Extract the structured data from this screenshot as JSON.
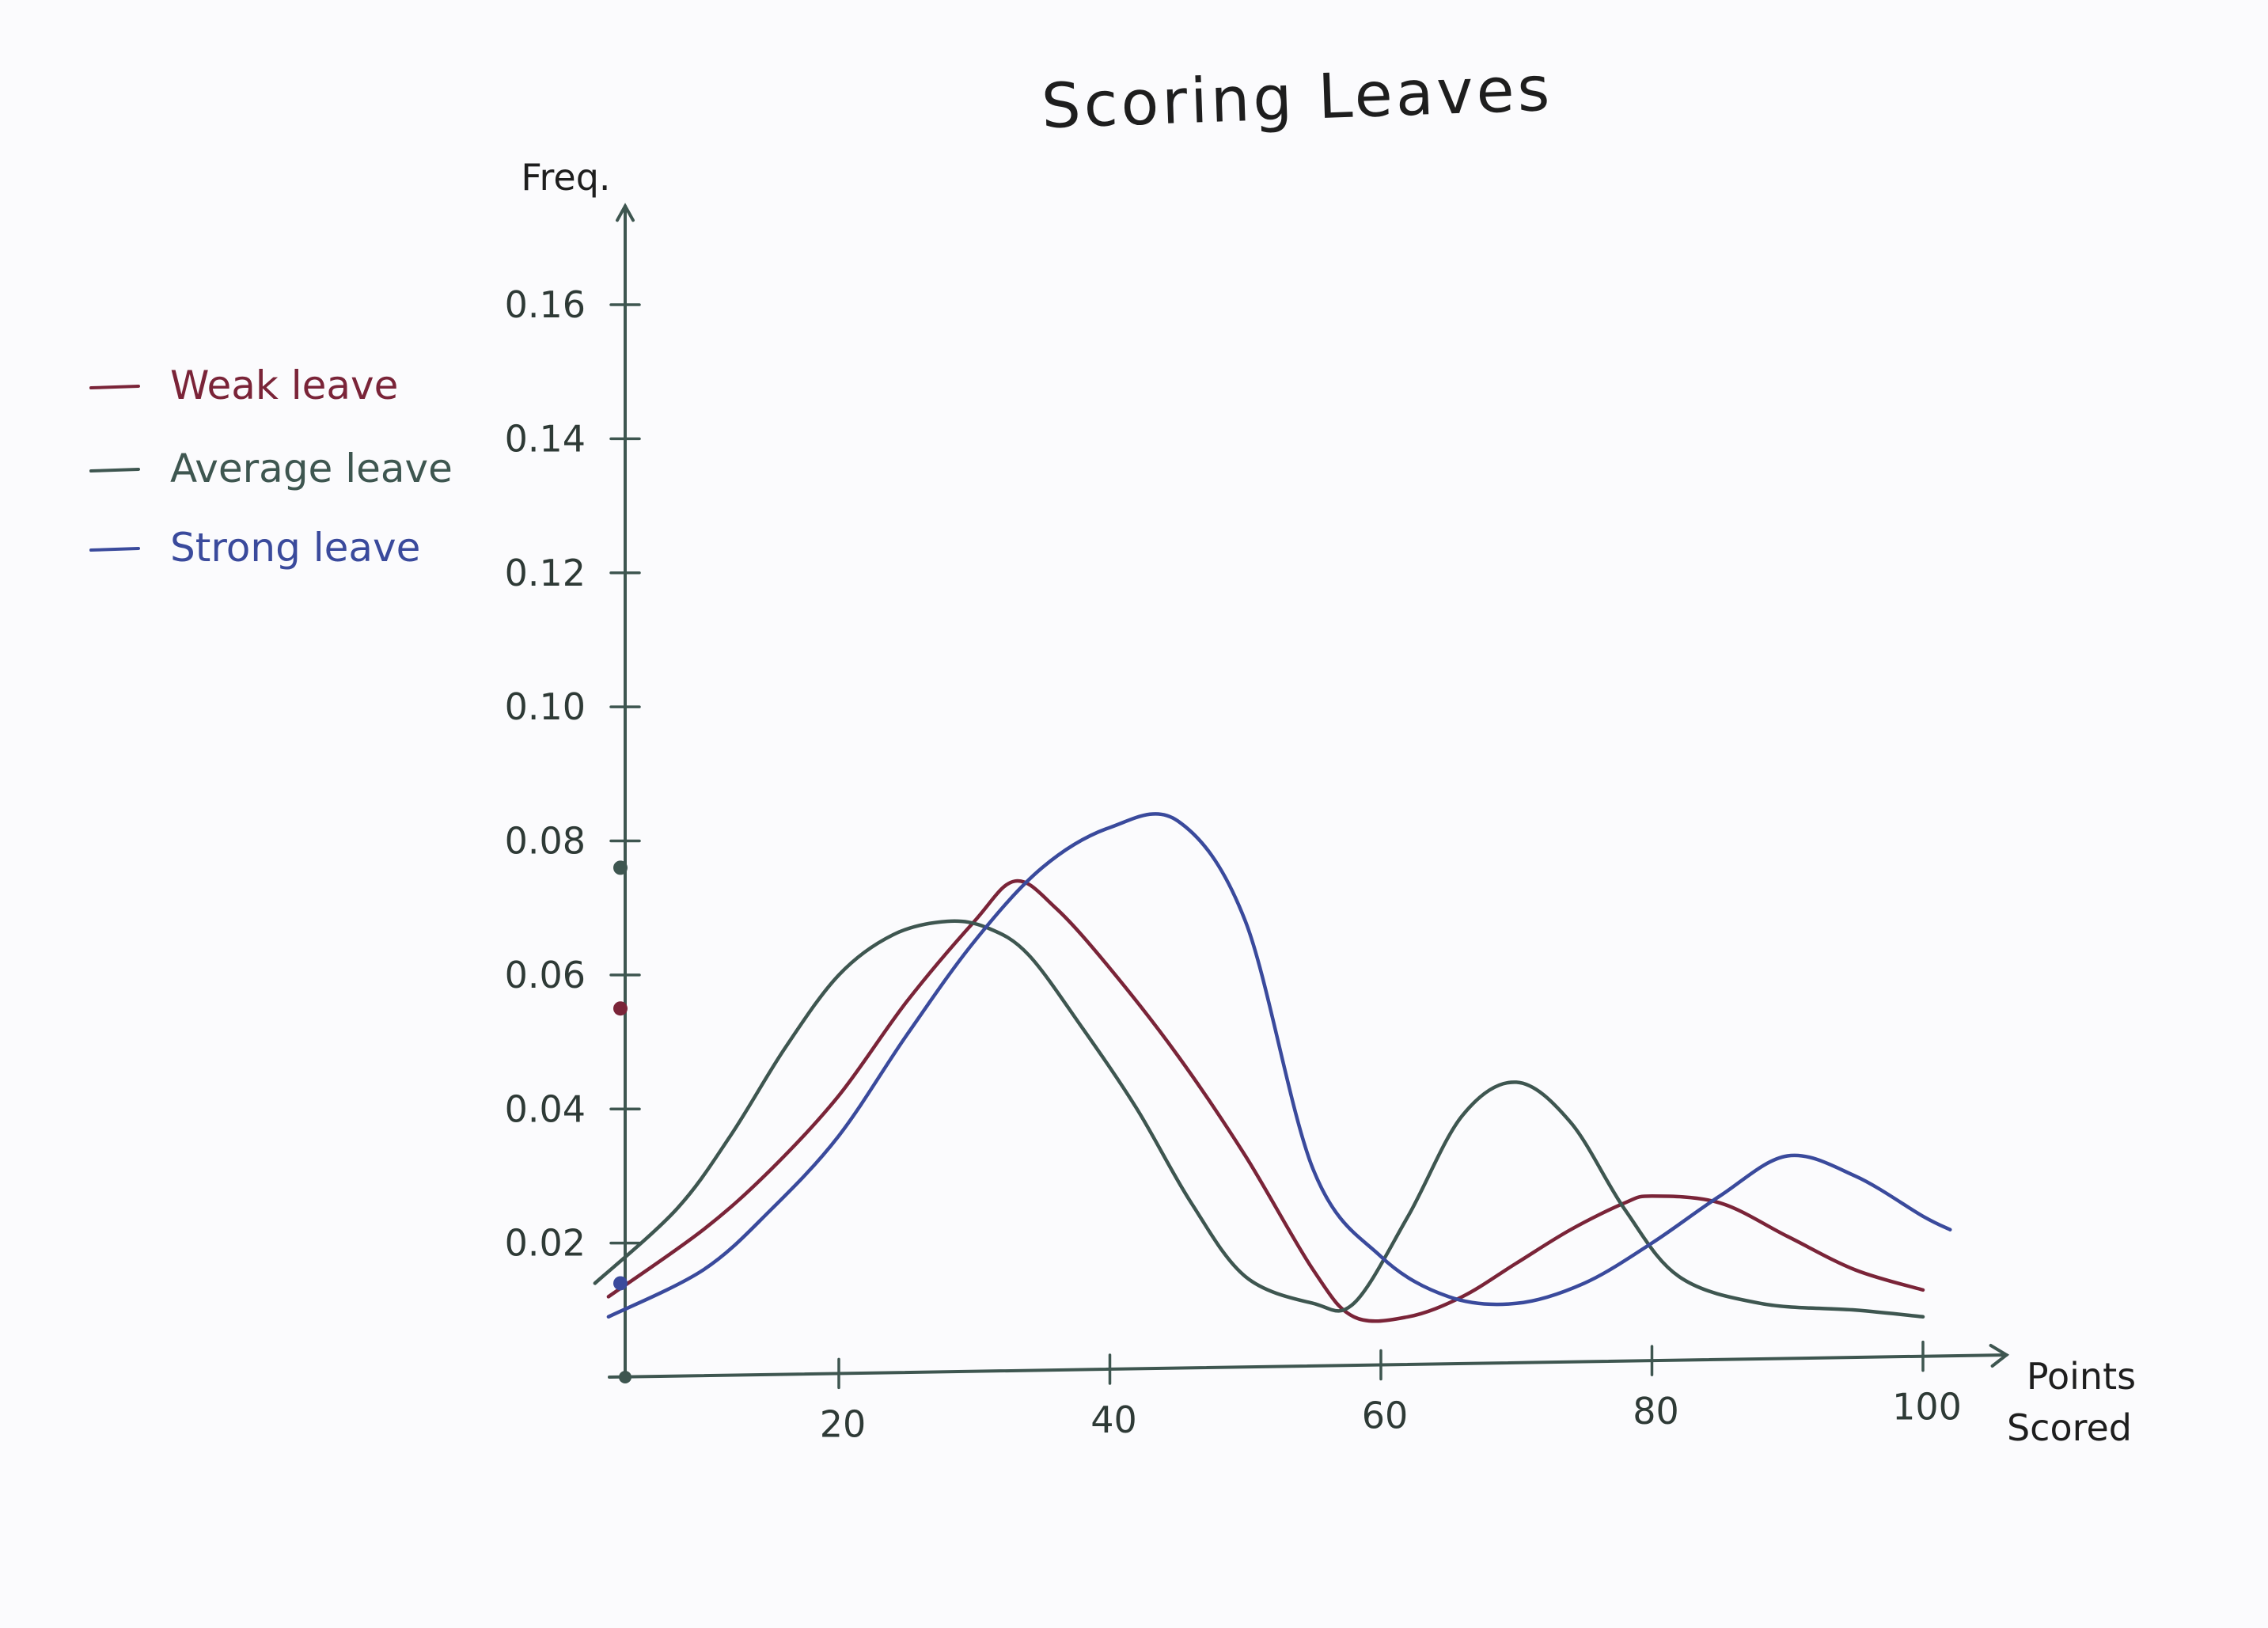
{
  "chart_data": {
    "type": "line",
    "title": "Scoring Leaves",
    "xlabel": "Points Scored",
    "xlabel_lines": [
      "Points",
      "Scored"
    ],
    "ylabel": "Freq.",
    "xlim": [
      0,
      105
    ],
    "ylim": [
      0,
      0.17
    ],
    "x_ticks": [
      20,
      40,
      60,
      80,
      100
    ],
    "x_tick_labels": [
      "20",
      "40",
      "60",
      "80",
      "100"
    ],
    "y_ticks": [
      0.02,
      0.04,
      0.06,
      0.08,
      0.1,
      0.12,
      0.14,
      0.16
    ],
    "y_tick_labels": [
      "0.02",
      "0.04",
      "0.06",
      "0.08",
      "0.10",
      "0.12",
      "0.14",
      "0.16"
    ],
    "grid": false,
    "legend_position": "left",
    "series": [
      {
        "name": "Weak leave",
        "color": "#7a2438",
        "x": [
          3,
          10,
          15,
          20,
          25,
          30,
          33,
          36,
          40,
          45,
          50,
          55,
          58,
          62,
          66,
          70,
          74,
          78,
          80,
          85,
          90,
          95,
          100
        ],
        "y": [
          0.012,
          0.022,
          0.031,
          0.042,
          0.056,
          0.068,
          0.074,
          0.07,
          0.061,
          0.048,
          0.033,
          0.016,
          0.009,
          0.009,
          0.012,
          0.017,
          0.022,
          0.026,
          0.027,
          0.026,
          0.021,
          0.016,
          0.013
        ]
      },
      {
        "name": "Average leave",
        "color": "#3e5650",
        "x": [
          2,
          8,
          12,
          16,
          20,
          24,
          28,
          31,
          34,
          38,
          42,
          46,
          50,
          55,
          58,
          62,
          66,
          70,
          74,
          78,
          82,
          88,
          95,
          100
        ],
        "y": [
          0.014,
          0.025,
          0.036,
          0.049,
          0.06,
          0.066,
          0.068,
          0.067,
          0.063,
          0.052,
          0.04,
          0.026,
          0.015,
          0.011,
          0.011,
          0.024,
          0.039,
          0.044,
          0.038,
          0.025,
          0.015,
          0.011,
          0.01,
          0.009
        ]
      },
      {
        "name": "Strong leave",
        "color": "#3a4a9c",
        "x": [
          3,
          10,
          15,
          20,
          25,
          30,
          35,
          40,
          45,
          50,
          55,
          60,
          65,
          70,
          75,
          80,
          85,
          90,
          95,
          100,
          102
        ],
        "y": [
          0.009,
          0.016,
          0.025,
          0.036,
          0.051,
          0.065,
          0.076,
          0.082,
          0.083,
          0.068,
          0.031,
          0.018,
          0.012,
          0.011,
          0.014,
          0.02,
          0.027,
          0.033,
          0.03,
          0.024,
          0.022
        ]
      }
    ],
    "axis_markers": [
      {
        "color": "#3e5650",
        "y": 0.076
      },
      {
        "color": "#7a2438",
        "y": 0.055
      },
      {
        "color": "#3a4a9c",
        "y": 0.014
      }
    ]
  }
}
